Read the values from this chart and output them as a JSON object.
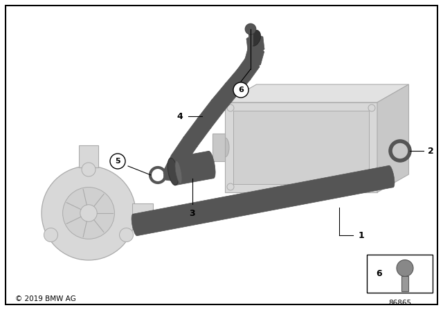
{
  "background_color": "#ffffff",
  "border_color": "#000000",
  "part_color": "#555555",
  "ghost_fill": "#d8d8d8",
  "ghost_edge": "#aaaaaa",
  "copyright": "© 2019 BMW AG",
  "part_number": "86865"
}
